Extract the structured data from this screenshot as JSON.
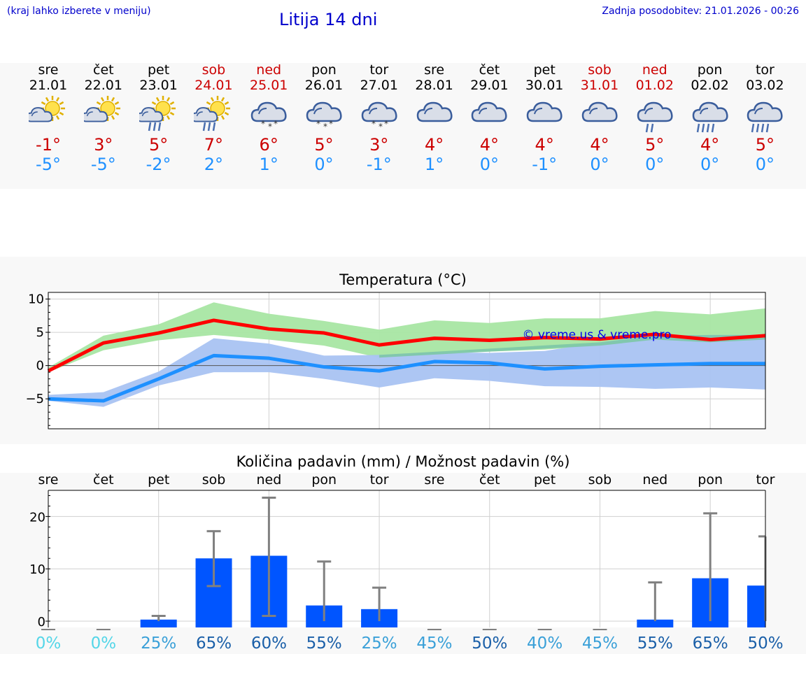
{
  "header": {
    "hint": "(kraj lahko izberete v meniju)",
    "title": "Litija 14 dni",
    "updated": "Zadnja posodobitev: 21.01.2026 - 00:26"
  },
  "days": [
    {
      "name": "sre",
      "date": "21.01",
      "max": "-1°",
      "min": "-5°",
      "icon": "sun-cloud-icon",
      "weekend": false
    },
    {
      "name": "čet",
      "date": "22.01",
      "max": "3°",
      "min": "-5°",
      "icon": "sun-cloud-icon",
      "weekend": false
    },
    {
      "name": "pet",
      "date": "23.01",
      "max": "5°",
      "min": "-2°",
      "icon": "sun-cloud-rain-icon",
      "weekend": false
    },
    {
      "name": "sob",
      "date": "24.01",
      "max": "7°",
      "min": "2°",
      "icon": "sun-cloud-rain-icon",
      "weekend": true
    },
    {
      "name": "ned",
      "date": "25.01",
      "max": "6°",
      "min": "1°",
      "icon": "cloud-snow-icon",
      "weekend": true
    },
    {
      "name": "pon",
      "date": "26.01",
      "max": "5°",
      "min": "0°",
      "icon": "cloud-snow-icon",
      "weekend": false
    },
    {
      "name": "tor",
      "date": "27.01",
      "max": "3°",
      "min": "-1°",
      "icon": "cloud-snow-icon",
      "weekend": false
    },
    {
      "name": "sre",
      "date": "28.01",
      "max": "4°",
      "min": "1°",
      "icon": "cloud-icon",
      "weekend": false
    },
    {
      "name": "čet",
      "date": "29.01",
      "max": "4°",
      "min": "0°",
      "icon": "cloud-icon",
      "weekend": false
    },
    {
      "name": "pet",
      "date": "30.01",
      "max": "4°",
      "min": "-1°",
      "icon": "cloud-icon",
      "weekend": false
    },
    {
      "name": "sob",
      "date": "31.01",
      "max": "4°",
      "min": "0°",
      "icon": "cloud-icon",
      "weekend": true
    },
    {
      "name": "ned",
      "date": "01.02",
      "max": "5°",
      "min": "0°",
      "icon": "cloud-rain-icon",
      "weekend": true
    },
    {
      "name": "pon",
      "date": "02.02",
      "max": "4°",
      "min": "0°",
      "icon": "cloud-heavy-rain-icon",
      "weekend": false
    },
    {
      "name": "tor",
      "date": "03.02",
      "max": "5°",
      "min": "0°",
      "icon": "cloud-heavy-rain-icon",
      "weekend": false
    }
  ],
  "colors": {
    "max": "#ff0000",
    "min": "#1e90ff",
    "max_band": "#a8e6a3",
    "min_band": "#a9c3f2",
    "overlap_band": "#7cc6a6",
    "bar": "#0055ff",
    "whisker": "#808080"
  },
  "chart_data": [
    {
      "type": "line",
      "title": "Temperatura (°C)",
      "watermark": "© vreme.us & vreme.pro",
      "ylim": [
        -9.5,
        11
      ],
      "yticks": [
        10,
        5,
        0,
        -5
      ],
      "ytick_labels": [
        "10",
        "5",
        "0",
        "−5"
      ],
      "x": [
        0,
        1,
        2,
        3,
        4,
        5,
        6,
        7,
        8,
        9,
        10,
        11,
        12,
        13
      ],
      "series": [
        {
          "name": "max",
          "values": [
            -0.8,
            3.4,
            4.9,
            6.8,
            5.5,
            4.9,
            3.1,
            4.1,
            3.8,
            4.2,
            4.0,
            4.7,
            3.9,
            4.5
          ]
        },
        {
          "name": "min",
          "values": [
            -5.0,
            -5.3,
            -2.0,
            1.5,
            1.1,
            -0.2,
            -0.8,
            0.6,
            0.4,
            -0.5,
            -0.1,
            0.1,
            0.3,
            0.3
          ]
        }
      ],
      "bands": [
        {
          "name": "max_range",
          "low": [
            -1.0,
            2.3,
            3.8,
            4.6,
            3.9,
            3.0,
            1.2,
            2.0,
            2.1,
            2.4,
            3.0,
            3.9,
            3.5,
            3.9
          ],
          "high": [
            -0.3,
            4.5,
            6.2,
            9.5,
            7.8,
            6.7,
            5.4,
            6.8,
            6.4,
            7.1,
            7.1,
            8.2,
            7.7,
            8.6
          ]
        },
        {
          "name": "min_range",
          "low": [
            -5.3,
            -6.2,
            -3.0,
            -1.0,
            -1.0,
            -2.0,
            -3.3,
            -1.9,
            -2.3,
            -3.1,
            -3.2,
            -3.5,
            -3.3,
            -3.6
          ],
          "high": [
            -4.4,
            -4.0,
            -0.9,
            4.1,
            3.3,
            1.5,
            1.6,
            2.0,
            1.9,
            2.2,
            3.5,
            4.5,
            4.6,
            4.6
          ]
        }
      ]
    },
    {
      "type": "bar",
      "title": "Količina padavin (mm) / Možnost padavin (%)",
      "categories": [
        "sre",
        "čet",
        "pet",
        "sob",
        "ned",
        "pon",
        "tor",
        "sre",
        "čet",
        "pet",
        "sob",
        "ned",
        "pon",
        "tor"
      ],
      "values": [
        0,
        0,
        0.3,
        12.0,
        12.5,
        3.0,
        2.3,
        0,
        0,
        0,
        0,
        0.3,
        8.2,
        6.8
      ],
      "error_low": [
        0,
        0,
        0,
        6.7,
        1.0,
        0,
        0,
        0,
        0,
        0,
        0,
        0,
        0,
        0
      ],
      "error_high": [
        0,
        0,
        1.0,
        17.2,
        23.6,
        11.4,
        6.4,
        0,
        0,
        0,
        0,
        7.4,
        20.6,
        16.2
      ],
      "ylim": [
        -1.2,
        25
      ],
      "yticks": [
        20,
        10,
        0
      ],
      "ytick_labels": [
        "20",
        "10",
        "0"
      ],
      "probability": [
        "0%",
        "0%",
        "25%",
        "65%",
        "60%",
        "55%",
        "25%",
        "45%",
        "50%",
        "40%",
        "45%",
        "55%",
        "65%",
        "50%"
      ]
    }
  ]
}
